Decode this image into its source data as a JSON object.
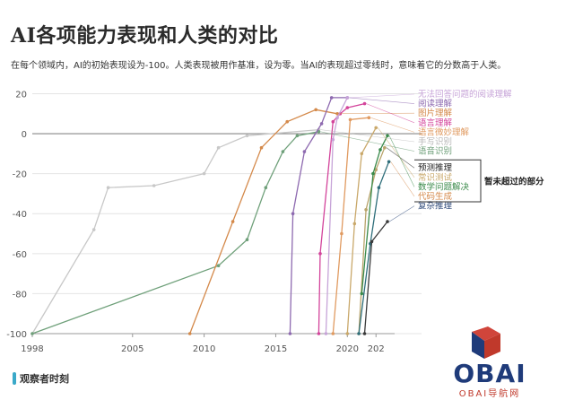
{
  "chart_data": {
    "type": "line",
    "title": "AI各项能力表现和人类的对比",
    "subtitle": "在每个领域内，AI的初始表现设为-100。人类表现被用作基准，设为零。当AI的表现超过零线时，意味着它的分数高于人类。",
    "x_ticks": [
      "1998",
      "2005",
      "2010",
      "2015",
      "2020",
      "202"
    ],
    "x_tick_values": [
      1998,
      2005,
      2010,
      2015,
      2020,
      2022
    ],
    "y_ticks": [
      "20",
      "0",
      "-20",
      "-40",
      "-60",
      "-80",
      "-100"
    ],
    "y_tick_values": [
      20,
      0,
      -20,
      -40,
      -60,
      -80,
      -100
    ],
    "xlim": [
      1998,
      2023.3
    ],
    "ylim": [
      -100,
      22
    ],
    "baseline": 0,
    "grid": "horizontal",
    "bracket_label": "暂未超过的部分",
    "series": [
      {
        "name": "手写识别",
        "color": "#c8c8c8",
        "points": [
          [
            1998,
            -100
          ],
          [
            2002.3,
            -48
          ],
          [
            2003.3,
            -27
          ],
          [
            2006.5,
            -26
          ],
          [
            2010,
            -20
          ],
          [
            2011,
            -7
          ],
          [
            2013,
            -1
          ],
          [
            2018,
            2
          ]
        ]
      },
      {
        "name": "语音识别",
        "color": "#6fa07a",
        "points": [
          [
            1998,
            -100
          ],
          [
            2011,
            -66
          ],
          [
            2013,
            -53
          ],
          [
            2014.3,
            -27
          ],
          [
            2015.5,
            -9
          ],
          [
            2016.5,
            -1
          ],
          [
            2018,
            1
          ]
        ]
      },
      {
        "name": "图片理解",
        "color": "#d4894a",
        "points": [
          [
            2009,
            -100
          ],
          [
            2012,
            -44
          ],
          [
            2014,
            -7
          ],
          [
            2015.8,
            6
          ],
          [
            2017.8,
            12
          ],
          [
            2019.3,
            10
          ]
        ]
      },
      {
        "name": "阅读理解",
        "color": "#8e6ab0",
        "points": [
          [
            2016,
            -100
          ],
          [
            2016.2,
            -40
          ],
          [
            2017,
            -9
          ],
          [
            2018.2,
            5
          ],
          [
            2018.9,
            18
          ],
          [
            2020,
            18
          ]
        ]
      },
      {
        "name": "语言理解",
        "color": "#d3449b",
        "points": [
          [
            2018,
            -100
          ],
          [
            2018.1,
            -60
          ],
          [
            2019,
            6
          ],
          [
            2019.5,
            10
          ],
          [
            2020,
            13
          ],
          [
            2021.2,
            15
          ]
        ]
      },
      {
        "name": "无法回答问题的阅读理解",
        "color": "#c7a4d8",
        "points": [
          [
            2018.5,
            -100
          ],
          [
            2019,
            -3
          ],
          [
            2019.3,
            8
          ],
          [
            2020,
            18
          ]
        ]
      },
      {
        "name": "语言微妙理解",
        "color": "#e09a60",
        "points": [
          [
            2019,
            -100
          ],
          [
            2019.6,
            -50
          ],
          [
            2020.2,
            7
          ],
          [
            2021.5,
            8
          ]
        ]
      },
      {
        "name": "常识测试",
        "color": "#c9a86a",
        "points": [
          [
            2020,
            -100
          ],
          [
            2020.5,
            -45
          ],
          [
            2021,
            -10
          ],
          [
            2022,
            3
          ]
        ]
      },
      {
        "name": "预测推理",
        "color": "#b8a36a",
        "points": [
          [
            2020.8,
            -100
          ],
          [
            2021.3,
            -38
          ],
          [
            2022,
            -18
          ],
          [
            2022.6,
            -7
          ]
        ]
      },
      {
        "name": "数学问题解决",
        "color": "#3a8a4a",
        "points": [
          [
            2021,
            -80
          ],
          [
            2021.8,
            -20
          ],
          [
            2022.3,
            -8
          ],
          [
            2022.8,
            -1
          ]
        ]
      },
      {
        "name": "代码生成",
        "color": "#2e6e7a",
        "points": [
          [
            2020.8,
            -100
          ],
          [
            2021.6,
            -55
          ],
          [
            2022.2,
            -27
          ],
          [
            2022.9,
            -14
          ]
        ]
      },
      {
        "name": "复杂推理",
        "color": "#3a3a3a",
        "points": [
          [
            2021.2,
            -100
          ],
          [
            2021.7,
            -54
          ],
          [
            2022.8,
            -44
          ]
        ]
      }
    ],
    "legend": [
      {
        "label": "无法回答问题的阅读理解",
        "color": "#c7a4d8"
      },
      {
        "label": "阅读理解",
        "color": "#8e6ab0"
      },
      {
        "label": "图片理解",
        "color": "#d4894a"
      },
      {
        "label": "语言理解",
        "color": "#d3449b"
      },
      {
        "label": "语言微妙理解",
        "color": "#e09a60"
      },
      {
        "label": "手写识别",
        "color": "#b8b8b8"
      },
      {
        "label": "语音识别",
        "color": "#6fa07a"
      },
      {
        "label": "预测推理",
        "color": "#222222"
      },
      {
        "label": "常识测试",
        "color": "#c9a86a"
      },
      {
        "label": "数学问题解决",
        "color": "#3a8a4a"
      },
      {
        "label": "代码生成",
        "color": "#d4894a"
      },
      {
        "label": "复杂推理",
        "color": "#2e4a7a"
      }
    ]
  },
  "footer": {
    "source": "观察者时刻"
  },
  "watermark": {
    "logo_text": "OBAI",
    "sub_text": "OBAI导航网"
  }
}
